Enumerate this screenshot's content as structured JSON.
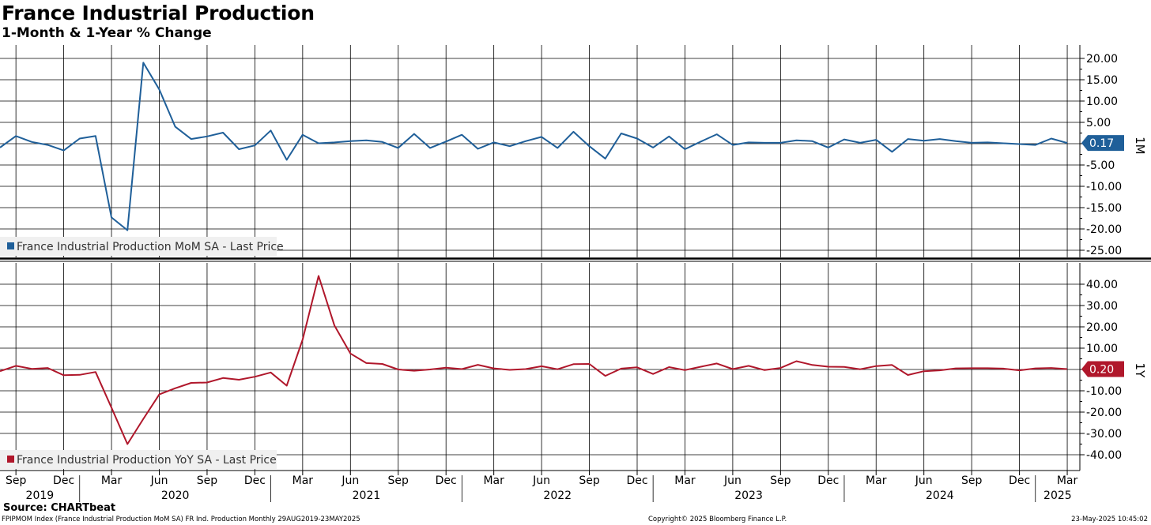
{
  "title": "France Industrial Production",
  "subtitle": "1-Month & 1-Year % Change",
  "source": "Source: CHARTbeat",
  "footer": {
    "left": "FPIPMOM Index (France Industrial Production MoM SA) FR Ind. Production  Monthly 29AUG2019-23MAY2025",
    "center": "Copyright© 2025 Bloomberg Finance L.P.",
    "right": "23-May-2025 10:45:02"
  },
  "colors": {
    "mom": "#1f5f99",
    "yoy": "#b0172b",
    "grid": "#000000",
    "panel_bg": "#ffffff"
  },
  "chart_data": [
    {
      "type": "line",
      "panel_label": "1M",
      "legend": "France Industrial Production MoM SA - Last Price",
      "last_value_label": "0.17",
      "ylim": [
        -27.5,
        22.5
      ],
      "yticks": [
        20,
        15,
        10,
        5,
        0,
        -5,
        -10,
        -15,
        -20,
        -25
      ],
      "ytick_labels": [
        "20.00",
        "15.00",
        "10.00",
        "5.00",
        "",
        "-5.00",
        "-10.00",
        "-15.00",
        "-20.00",
        "-25.00"
      ],
      "x": [
        "2019-08",
        "2019-09",
        "2019-10",
        "2019-11",
        "2019-12",
        "2020-01",
        "2020-02",
        "2020-03",
        "2020-04",
        "2020-05",
        "2020-06",
        "2020-07",
        "2020-08",
        "2020-09",
        "2020-10",
        "2020-11",
        "2020-12",
        "2021-01",
        "2021-02",
        "2021-03",
        "2021-04",
        "2021-05",
        "2021-06",
        "2021-07",
        "2021-08",
        "2021-09",
        "2021-10",
        "2021-11",
        "2021-12",
        "2022-01",
        "2022-02",
        "2022-03",
        "2022-04",
        "2022-05",
        "2022-06",
        "2022-07",
        "2022-08",
        "2022-09",
        "2022-10",
        "2022-11",
        "2022-12",
        "2023-01",
        "2023-02",
        "2023-03",
        "2023-04",
        "2023-05",
        "2023-06",
        "2023-07",
        "2023-08",
        "2023-09",
        "2023-10",
        "2023-11",
        "2023-12",
        "2024-01",
        "2024-02",
        "2024-03",
        "2024-04",
        "2024-05",
        "2024-06",
        "2024-07",
        "2024-08",
        "2024-09",
        "2024-10",
        "2024-11",
        "2024-12",
        "2025-01",
        "2025-02",
        "2025-03"
      ],
      "series": [
        {
          "name": "France Industrial Production MoM SA",
          "values": [
            -0.9,
            1.8,
            0.4,
            -0.3,
            -1.6,
            1.2,
            1.8,
            -17.3,
            -20.3,
            19.0,
            12.7,
            4.0,
            1.1,
            1.7,
            2.6,
            -1.3,
            -0.4,
            3.1,
            -3.8,
            2.1,
            0.1,
            0.3,
            0.6,
            0.8,
            0.4,
            -1.0,
            2.3,
            -1.0,
            0.5,
            2.1,
            -1.2,
            0.3,
            -0.6,
            0.6,
            1.6,
            -1.0,
            2.8,
            -0.6,
            -3.5,
            2.4,
            1.2,
            -0.9,
            1.7,
            -1.3,
            0.5,
            2.2,
            -0.3,
            0.3,
            0.2,
            0.2,
            0.8,
            0.6,
            -0.9,
            1.0,
            0.2,
            0.9,
            -1.9,
            1.1,
            0.7,
            1.1,
            0.6,
            0.2,
            0.3,
            0.1,
            -0.1,
            -0.3,
            1.2,
            0.17
          ]
        }
      ]
    },
    {
      "type": "line",
      "panel_label": "1Y",
      "legend": "France Industrial Production YoY SA - Last Price",
      "last_value_label": "0.20",
      "ylim": [
        -45,
        50
      ],
      "yticks": [
        40,
        30,
        20,
        10,
        0,
        -10,
        -20,
        -30,
        -40
      ],
      "ytick_labels": [
        "40.00",
        "30.00",
        "20.00",
        "10.00",
        "",
        "-10.00",
        "-20.00",
        "-30.00",
        "-40.00"
      ],
      "series": [
        {
          "name": "France Industrial Production YoY SA",
          "values": [
            -0.8,
            1.7,
            0.3,
            0.7,
            -2.7,
            -2.5,
            -1.2,
            -17.9,
            -35.0,
            -23.2,
            -11.7,
            -8.8,
            -6.3,
            -6.1,
            -4.0,
            -4.8,
            -3.4,
            -1.4,
            -7.6,
            14.0,
            43.9,
            20.6,
            7.5,
            3.0,
            2.6,
            0.0,
            -0.6,
            0.0,
            0.8,
            0.2,
            2.2,
            0.5,
            -0.2,
            0.2,
            1.5,
            0.1,
            2.5,
            2.6,
            -3.0,
            0.4,
            1.0,
            -2.1,
            1.1,
            -0.3,
            1.3,
            2.8,
            0.2,
            1.7,
            -0.3,
            0.7,
            3.9,
            2.1,
            1.3,
            1.2,
            0.1,
            1.6,
            2.1,
            -2.6,
            -0.8,
            -0.4,
            0.5,
            0.6,
            0.6,
            0.4,
            -0.4,
            0.5,
            0.7,
            0.2
          ]
        }
      ]
    }
  ],
  "x_axis": {
    "month_labels": [
      "Sep",
      "Dec",
      "Mar",
      "Jun",
      "Sep",
      "Dec",
      "Mar",
      "Jun",
      "Sep",
      "Dec",
      "Mar",
      "Jun",
      "Sep",
      "Dec",
      "Mar",
      "Jun",
      "Sep",
      "Dec",
      "Mar",
      "Jun",
      "Sep",
      "Dec",
      "Mar"
    ],
    "year_labels": [
      "2019",
      "2020",
      "2021",
      "2022",
      "2023",
      "2024",
      "2025"
    ]
  }
}
